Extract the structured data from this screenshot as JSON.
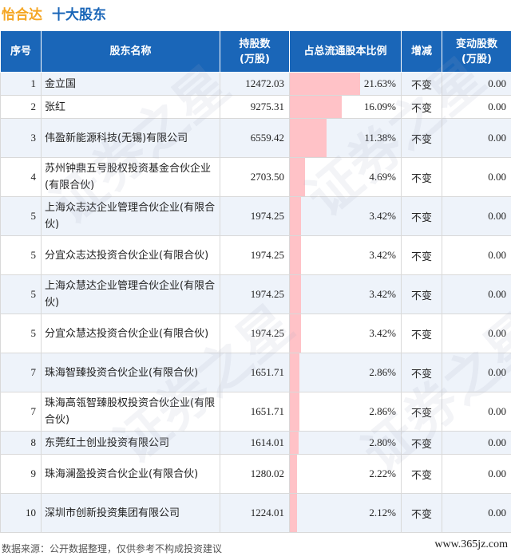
{
  "header": {
    "company": "怡合达",
    "title": "十大股东"
  },
  "columns": {
    "rank": "序号",
    "name": "股东名称",
    "shares": "持股数\n(万股)",
    "ratio": "占总流通股本比例",
    "change": "增减",
    "delta": "变动股数\n(万股)"
  },
  "rows": [
    {
      "rank": "1",
      "name": "金立国",
      "shares": "12472.03",
      "ratio": "21.63%",
      "ratio_value": 21.63,
      "change": "不变",
      "delta": "0.00"
    },
    {
      "rank": "2",
      "name": "张红",
      "shares": "9275.31",
      "ratio": "16.09%",
      "ratio_value": 16.09,
      "change": "不变",
      "delta": "0.00"
    },
    {
      "rank": "3",
      "name": "伟盈新能源科技(无锡)有限公司",
      "shares": "6559.42",
      "ratio": "11.38%",
      "ratio_value": 11.38,
      "change": "不变",
      "delta": "0.00"
    },
    {
      "rank": "4",
      "name": "苏州钟鼎五号股权投资基金合伙企业(有限合伙)",
      "shares": "2703.50",
      "ratio": "4.69%",
      "ratio_value": 4.69,
      "change": "不变",
      "delta": "0.00"
    },
    {
      "rank": "5",
      "name": "上海众志达企业管理合伙企业(有限合伙)",
      "shares": "1974.25",
      "ratio": "3.42%",
      "ratio_value": 3.42,
      "change": "不变",
      "delta": "0.00"
    },
    {
      "rank": "5",
      "name": "分宜众志达投资合伙企业(有限合伙)",
      "shares": "1974.25",
      "ratio": "3.42%",
      "ratio_value": 3.42,
      "change": "不变",
      "delta": "0.00"
    },
    {
      "rank": "5",
      "name": "上海众慧达企业管理合伙企业(有限合伙)",
      "shares": "1974.25",
      "ratio": "3.42%",
      "ratio_value": 3.42,
      "change": "不变",
      "delta": "0.00"
    },
    {
      "rank": "5",
      "name": "分宜众慧达投资合伙企业(有限合伙)",
      "shares": "1974.25",
      "ratio": "3.42%",
      "ratio_value": 3.42,
      "change": "不变",
      "delta": "0.00"
    },
    {
      "rank": "7",
      "name": "珠海智臻投资合伙企业(有限合伙)",
      "shares": "1651.71",
      "ratio": "2.86%",
      "ratio_value": 2.86,
      "change": "不变",
      "delta": "0.00"
    },
    {
      "rank": "7",
      "name": "珠海高瓴智臻股权投资合伙企业(有限合伙)",
      "shares": "1651.71",
      "ratio": "2.86%",
      "ratio_value": 2.86,
      "change": "不变",
      "delta": "0.00"
    },
    {
      "rank": "8",
      "name": "东莞红土创业投资有限公司",
      "shares": "1614.01",
      "ratio": "2.80%",
      "ratio_value": 2.8,
      "change": "不变",
      "delta": "0.00"
    },
    {
      "rank": "9",
      "name": "珠海澜盈投资合伙企业(有限合伙)",
      "shares": "1280.02",
      "ratio": "2.22%",
      "ratio_value": 2.22,
      "change": "不变",
      "delta": "0.00"
    },
    {
      "rank": "10",
      "name": "深圳市创新投资集团有限公司",
      "shares": "1224.01",
      "ratio": "2.12%",
      "ratio_value": 2.12,
      "change": "不变",
      "delta": "0.00"
    }
  ],
  "footer": {
    "source": "数据来源：公开数据整理，仅供参考不构成投资建议",
    "site": "www.365jz.com"
  },
  "watermark": "证券之星",
  "colors": {
    "header_bg": "#1a66b8",
    "company": "#f5a623",
    "bar": "#ffc2c7",
    "row_alt": "#eef3fa"
  }
}
